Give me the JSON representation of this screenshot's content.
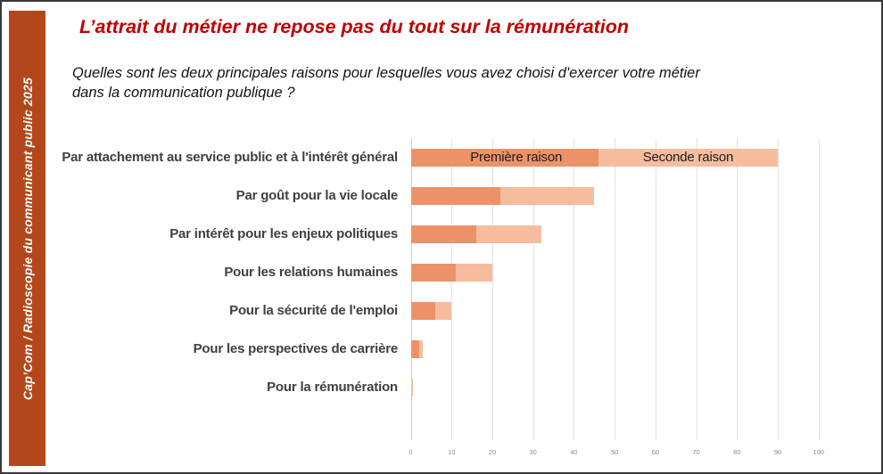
{
  "sidebar": {
    "label": "Cap’Com / Radioscopie du communicant public 2025",
    "bg_color": "#B3471B",
    "text_color": "#FFFFFF"
  },
  "header": {
    "title": "L’attrait du métier ne repose pas du tout sur la rémunération",
    "title_color": "#C00000"
  },
  "question": {
    "line1": "Quelles sont les deux principales raisons pour lesquelles vous avez choisi d'exercer votre métier",
    "line2": "dans la communication publique ?"
  },
  "chart_data": {
    "type": "bar",
    "orientation": "horizontal",
    "stacked": true,
    "categories": [
      "Par attachement au service public et à l'intérêt général",
      "Par goût pour la vie locale",
      "Par intérêt pour les enjeux politiques",
      "Pour les relations humaines",
      "Pour la sécurité de l'emploi",
      "Pour les perspectives de carrière",
      "Pour la rémunération"
    ],
    "series": [
      {
        "name": "Première raison",
        "color": "#EC9268",
        "values": [
          46,
          22,
          16,
          11,
          6,
          2,
          0
        ]
      },
      {
        "name": "Seconde raison",
        "color": "#F5BD9E",
        "values": [
          44,
          23,
          16,
          9,
          4,
          1,
          0.5
        ]
      }
    ],
    "xlim": [
      0,
      100
    ],
    "xticks": [
      0,
      10,
      20,
      30,
      40,
      50,
      60,
      70,
      80,
      90,
      100
    ],
    "grid": true,
    "legend_position": "inside-first-bar"
  }
}
